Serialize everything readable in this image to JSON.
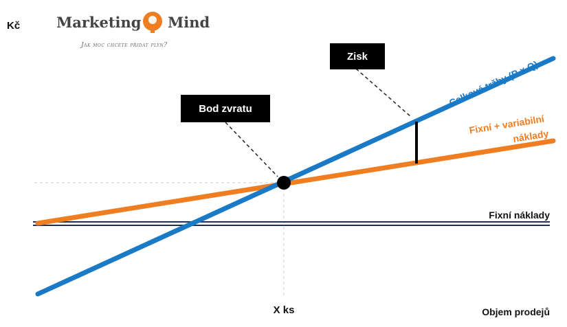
{
  "y_axis_label": "Kč",
  "logo": {
    "left": "Marketing",
    "right": "Mind",
    "tagline": "Jak moc chcete přidat plyn?"
  },
  "callouts": {
    "profit": "Zisk",
    "break_even": "Bod zvratu"
  },
  "lines": {
    "revenue": "Celkové tržby (P × Q)",
    "total_costs_1": "Fixní + variabilní",
    "total_costs_2": "náklady",
    "fixed_costs": "Fixní náklady"
  },
  "x_mark_label": "X ks",
  "x_axis_label": "Objem prodejů"
}
